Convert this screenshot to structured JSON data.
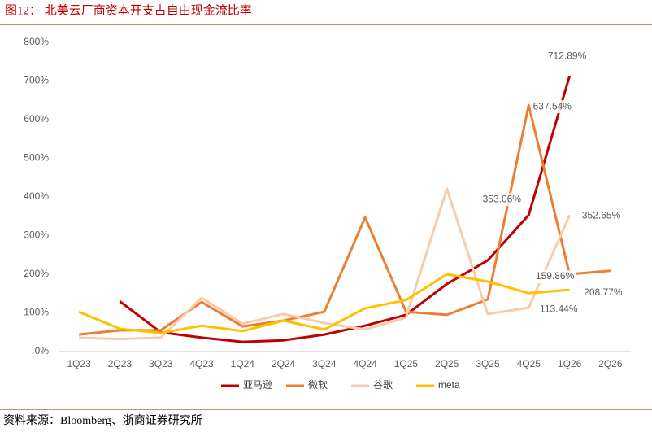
{
  "header": {
    "title": "图12：  北美云厂商资本开支占自由现金流比率"
  },
  "chart_data": {
    "type": "line",
    "categories": [
      "1Q23",
      "2Q23",
      "3Q23",
      "4Q23",
      "1Q24",
      "2Q24",
      "3Q24",
      "4Q24",
      "1Q25",
      "2Q25",
      "3Q25",
      "4Q25",
      "1Q26",
      "2Q26"
    ],
    "series": [
      {
        "name": "亚马逊",
        "color": "#C00000",
        "values": [
          null,
          130,
          50,
          36,
          25,
          29,
          44,
          67,
          95,
          175,
          236,
          353.06,
          712.89,
          null
        ],
        "value_labels": [
          null,
          null,
          null,
          null,
          null,
          null,
          null,
          null,
          null,
          null,
          null,
          "353.06%",
          "712.89%",
          null
        ]
      },
      {
        "name": "微软",
        "color": "#ED7D31",
        "values": [
          44,
          55,
          55,
          128,
          65,
          80,
          103,
          347,
          103,
          95,
          135,
          637.54,
          200,
          208.77
        ],
        "value_labels": [
          null,
          null,
          null,
          null,
          null,
          null,
          null,
          null,
          null,
          null,
          null,
          "637.54%",
          null,
          "208.77%"
        ]
      },
      {
        "name": "谷歌",
        "color": "#F8CBAD",
        "values": [
          36,
          32,
          36,
          139,
          72,
          97,
          74,
          57,
          88,
          421,
          97,
          113.44,
          352.65,
          null
        ],
        "value_labels": [
          null,
          null,
          null,
          null,
          null,
          null,
          null,
          null,
          null,
          null,
          null,
          "113.44%",
          "352.65%",
          null
        ]
      },
      {
        "name": "meta",
        "color": "#FFC000",
        "values": [
          103,
          59,
          48,
          67,
          53,
          80,
          57,
          112,
          133,
          200,
          181,
          151,
          159.86,
          null
        ],
        "value_labels": [
          null,
          null,
          null,
          null,
          null,
          null,
          null,
          null,
          null,
          null,
          null,
          null,
          "159.86%",
          null
        ]
      }
    ],
    "ylim": [
      0,
      800
    ],
    "yticks": [
      {
        "value": 0,
        "label": "0%"
      },
      {
        "value": 100,
        "label": "100%"
      },
      {
        "value": 200,
        "label": "200%"
      },
      {
        "value": 300,
        "label": "300%"
      },
      {
        "value": 400,
        "label": "400%"
      },
      {
        "value": 500,
        "label": "500%"
      },
      {
        "value": 600,
        "label": "600%"
      },
      {
        "value": 700,
        "label": "700%"
      },
      {
        "value": 800,
        "label": "800%"
      }
    ],
    "grid": false,
    "legend": "bottom"
  },
  "footer": {
    "source": "资料来源：Bloomberg、浙商证券研究所"
  }
}
